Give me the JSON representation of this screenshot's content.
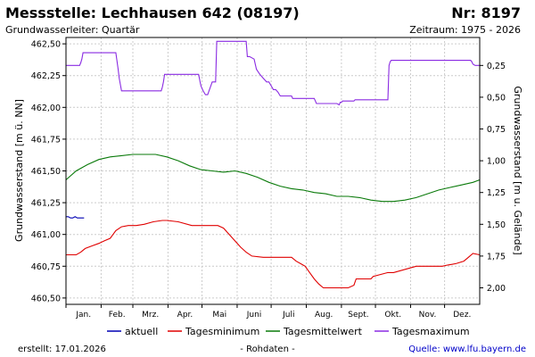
{
  "header": {
    "title": "Messstelle: Lechhausen 642 (08197)",
    "number": "Nr: 8197",
    "aquifer": "Grundwasserleiter: Quartär",
    "period": "Zeitraum: 1975 - 2026"
  },
  "footer": {
    "created": "erstellt:  17.01.2026",
    "raw": "- Rohdaten -",
    "source": "Quelle: www.lfu.bayern.de"
  },
  "colors": {
    "aktuell": "#0000b4",
    "min": "#e00000",
    "mean": "#0a7a0a",
    "max": "#8a2be2",
    "grid": "#cccccc",
    "axis": "#000000"
  },
  "chart_data": {
    "type": "line",
    "x_unit": "day_of_year",
    "xlim": [
      1,
      366
    ],
    "x_ticks": [
      {
        "label": "Jan.",
        "day": 1
      },
      {
        "label": "Feb.",
        "day": 32
      },
      {
        "label": "Mrz.",
        "day": 60
      },
      {
        "label": "Apr.",
        "day": 91
      },
      {
        "label": "Mai",
        "day": 121
      },
      {
        "label": "Juni",
        "day": 152
      },
      {
        "label": "Juli",
        "day": 182
      },
      {
        "label": "Aug.",
        "day": 213
      },
      {
        "label": "Sept.",
        "day": 244
      },
      {
        "label": "Okt.",
        "day": 274
      },
      {
        "label": "Nov.",
        "day": 305
      },
      {
        "label": "Dez.",
        "day": 335
      }
    ],
    "ylabel_left": "Grundwasserstand [m ü. NN]",
    "ylabel_right": "Grundwasserstand [m u. Gelände]",
    "ylim": [
      460.45,
      462.55
    ],
    "y_ticks_left": [
      {
        "label": "462,50",
        "value": 462.5
      },
      {
        "label": "462,25",
        "value": 462.25
      },
      {
        "label": "462,00",
        "value": 462.0
      },
      {
        "label": "461,75",
        "value": 461.75
      },
      {
        "label": "461,50",
        "value": 461.5
      },
      {
        "label": "461,25",
        "value": 461.25
      },
      {
        "label": "461,00",
        "value": 461.0
      },
      {
        "label": "460,75",
        "value": 460.75
      },
      {
        "label": "460,50",
        "value": 460.5
      }
    ],
    "y_ticks_right": [
      {
        "label": "0,25",
        "value": 462.33
      },
      {
        "label": "0,50",
        "value": 462.08
      },
      {
        "label": "0,75",
        "value": 461.83
      },
      {
        "label": "1,00",
        "value": 461.58
      },
      {
        "label": "1,25",
        "value": 461.33
      },
      {
        "label": "1,50",
        "value": 461.08
      },
      {
        "label": "1,75",
        "value": 460.83
      },
      {
        "label": "2,00",
        "value": 460.58
      }
    ],
    "series": [
      {
        "name": "aktuell",
        "color_key": "aktuell",
        "x": [
          1,
          3,
          5,
          7,
          9,
          11,
          13,
          15,
          17
        ],
        "y": [
          461.14,
          461.14,
          461.13,
          461.13,
          461.14,
          461.13,
          461.13,
          461.13,
          461.13
        ]
      },
      {
        "name": "Tagesminimum",
        "color_key": "min",
        "x": [
          1,
          10,
          14,
          18,
          24,
          30,
          35,
          40,
          45,
          50,
          56,
          63,
          70,
          78,
          86,
          90,
          100,
          112,
          118,
          124,
          130,
          135,
          140,
          145,
          150,
          155,
          160,
          165,
          175,
          190,
          200,
          204,
          208,
          212,
          216,
          220,
          224,
          228,
          232,
          250,
          255,
          257,
          264,
          270,
          272,
          285,
          290,
          310,
          320,
          325,
          333,
          338,
          345,
          352,
          356,
          360,
          366
        ],
        "y": [
          460.84,
          460.84,
          460.86,
          460.89,
          460.91,
          460.93,
          460.95,
          460.97,
          461.03,
          461.06,
          461.07,
          461.07,
          461.08,
          461.1,
          461.11,
          461.11,
          461.1,
          461.07,
          461.07,
          461.07,
          461.07,
          461.07,
          461.05,
          461.0,
          460.95,
          460.9,
          460.86,
          460.83,
          460.82,
          460.82,
          460.82,
          460.79,
          460.77,
          460.75,
          460.7,
          460.65,
          460.61,
          460.58,
          460.58,
          460.58,
          460.6,
          460.65,
          460.65,
          460.65,
          460.67,
          460.7,
          460.7,
          460.75,
          460.75,
          460.75,
          460.75,
          460.76,
          460.77,
          460.79,
          460.82,
          460.85,
          460.84
        ]
      },
      {
        "name": "Tagesmittelwert",
        "color_key": "mean",
        "x": [
          1,
          10,
          20,
          30,
          40,
          50,
          60,
          70,
          80,
          90,
          100,
          110,
          120,
          130,
          140,
          150,
          160,
          170,
          180,
          190,
          200,
          210,
          220,
          230,
          240,
          250,
          260,
          270,
          280,
          290,
          300,
          310,
          320,
          330,
          340,
          350,
          360,
          366
        ],
        "y": [
          461.43,
          461.5,
          461.55,
          461.59,
          461.61,
          461.62,
          461.63,
          461.63,
          461.63,
          461.61,
          461.58,
          461.54,
          461.51,
          461.5,
          461.49,
          461.5,
          461.48,
          461.45,
          461.41,
          461.38,
          461.36,
          461.35,
          461.33,
          461.32,
          461.3,
          461.3,
          461.29,
          461.27,
          461.26,
          461.26,
          461.27,
          461.29,
          461.32,
          461.35,
          461.37,
          461.39,
          461.41,
          461.43
        ]
      },
      {
        "name": "Tagesmaximum",
        "color_key": "max",
        "x": [
          1,
          13,
          14,
          15,
          16,
          45,
          47,
          48,
          50,
          52,
          85,
          86,
          87,
          88,
          118,
          120,
          122,
          124,
          126,
          130,
          133,
          134,
          160,
          161,
          163,
          167,
          169,
          172,
          175,
          178,
          180,
          182,
          184,
          186,
          188,
          190,
          200,
          201,
          210,
          215,
          220,
          221,
          222,
          240,
          242,
          243,
          244,
          245,
          246,
          255,
          256,
          285,
          286,
          287,
          288,
          358,
          359,
          360,
          362,
          364,
          366
        ],
        "y": [
          462.33,
          462.33,
          462.35,
          462.38,
          462.43,
          462.43,
          462.3,
          462.23,
          462.13,
          462.13,
          462.13,
          462.16,
          462.2,
          462.26,
          462.26,
          462.17,
          462.13,
          462.1,
          462.1,
          462.2,
          462.2,
          462.52,
          462.52,
          462.4,
          462.4,
          462.38,
          462.3,
          462.26,
          462.23,
          462.2,
          462.2,
          462.17,
          462.14,
          462.14,
          462.12,
          462.09,
          462.09,
          462.07,
          462.07,
          462.07,
          462.07,
          462.05,
          462.03,
          462.03,
          462.02,
          462.04,
          462.04,
          462.05,
          462.05,
          462.05,
          462.06,
          462.06,
          462.33,
          462.36,
          462.37,
          462.37,
          462.36,
          462.34,
          462.33,
          462.33,
          462.33
        ]
      }
    ],
    "legend": {
      "placement": "bottom",
      "entries": [
        {
          "label": "aktuell",
          "color_key": "aktuell"
        },
        {
          "label": "Tagesminimum",
          "color_key": "min"
        },
        {
          "label": "Tagesmittelwert",
          "color_key": "mean"
        },
        {
          "label": "Tagesmaximum",
          "color_key": "max"
        }
      ]
    },
    "grid": true
  }
}
